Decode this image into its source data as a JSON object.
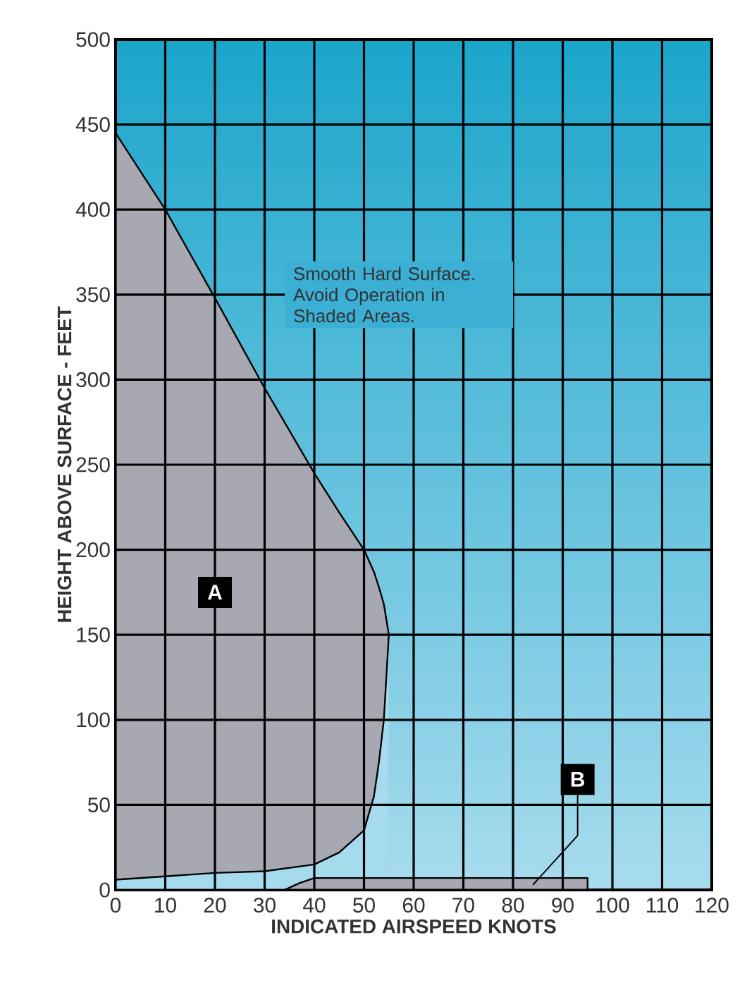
{
  "chart_data": {
    "type": "area",
    "xlabel": "INDICATED AIRSPEED KNOTS",
    "ylabel": "HEIGHT ABOVE SURFACE - FEET",
    "annotations": [
      "Smooth Hard Surface. Avoid Operation in Shaded Areas."
    ],
    "xlim": [
      0,
      120
    ],
    "ylim": [
      0,
      500
    ],
    "xticks": [
      0,
      10,
      20,
      30,
      40,
      50,
      60,
      70,
      80,
      90,
      100,
      110,
      120
    ],
    "yticks": [
      0,
      50,
      100,
      150,
      200,
      250,
      300,
      350,
      400,
      450,
      500
    ],
    "grid": true,
    "series": [
      {
        "name": "A",
        "color": "#a7a8b1",
        "x": [
          0,
          10,
          20,
          30,
          40,
          45,
          50,
          52,
          53,
          54,
          55
        ],
        "values": [
          445,
          400,
          348,
          295,
          245,
          222,
          200,
          187,
          178,
          168,
          150
        ]
      },
      {
        "color": "#a6dbee",
        "x": [
          0,
          10,
          20,
          30,
          40,
          45,
          50,
          52,
          53,
          54,
          55
        ],
        "values": [
          6,
          8,
          10,
          11,
          15,
          22,
          35,
          55,
          75,
          100,
          150
        ]
      },
      {
        "name": "B",
        "color": "#a7a8b1",
        "x": [
          34,
          37,
          40,
          95,
          95
        ],
        "values": [
          0,
          4,
          7,
          7,
          0
        ]
      }
    ]
  }
}
